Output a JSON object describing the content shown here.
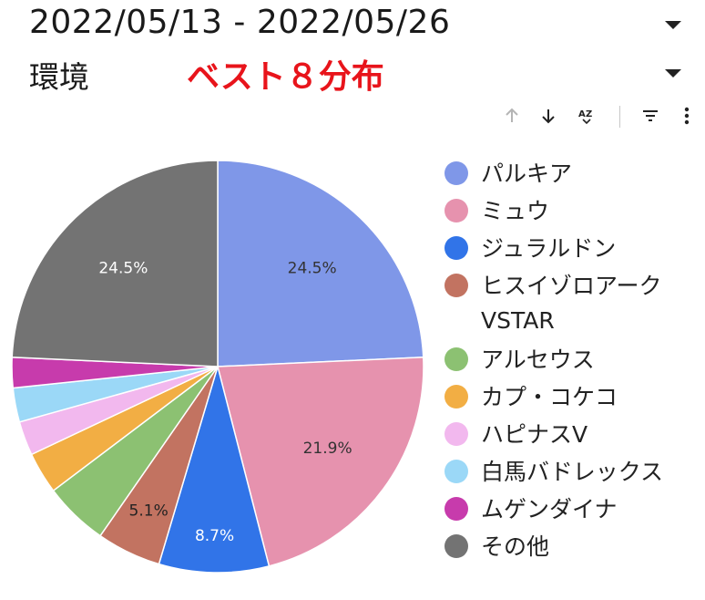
{
  "header": {
    "date_range": "2022/05/13 - 2022/05/26",
    "environment_label": "環境",
    "title": "ベスト８分布"
  },
  "toolbar": {
    "icons": [
      "arrow-up-icon",
      "arrow-down-icon",
      "sort-az-icon",
      "filter-icon",
      "more-vert-icon"
    ]
  },
  "chart_data": {
    "type": "pie",
    "title": "ベスト８分布",
    "legend_position": "right",
    "start_angle": "12 o'clock, clockwise",
    "slices": [
      {
        "label": "パルキア",
        "value": 24.5,
        "color": "#7F97E8",
        "data_label": "24.5%",
        "label_color": "#333333"
      },
      {
        "label": "ミュウ",
        "value": 21.9,
        "color": "#E692AE",
        "data_label": "21.9%",
        "label_color": "#333333"
      },
      {
        "label": "ジュラルドン",
        "value": 8.7,
        "color": "#3174E8",
        "data_label": "8.7%",
        "label_color": "#ffffff"
      },
      {
        "label": "ヒスイゾロアーク VSTAR",
        "value": 5.1,
        "color": "#C27361",
        "data_label": "5.1%",
        "label_color": "#222222"
      },
      {
        "label": "アルセウス",
        "value": 5.1,
        "color": "#8CC172",
        "data_label": "",
        "label_color": "#222222"
      },
      {
        "label": "カプ・コケコ",
        "value": 3.3,
        "color": "#F2AE44",
        "data_label": "",
        "label_color": "#222222"
      },
      {
        "label": "ハピナスV",
        "value": 2.7,
        "color": "#F2B8EE",
        "data_label": "",
        "label_color": "#222222"
      },
      {
        "label": "白馬バドレックス",
        "value": 2.7,
        "color": "#9BD8F7",
        "data_label": "",
        "label_color": "#222222"
      },
      {
        "label": "ムゲンダイナ",
        "value": 2.4,
        "color": "#C73BAC",
        "data_label": "",
        "label_color": "#ffffff"
      },
      {
        "label": "その他",
        "value": 24.5,
        "color": "#737373",
        "data_label": "24.5%",
        "label_color": "#ffffff"
      }
    ]
  }
}
